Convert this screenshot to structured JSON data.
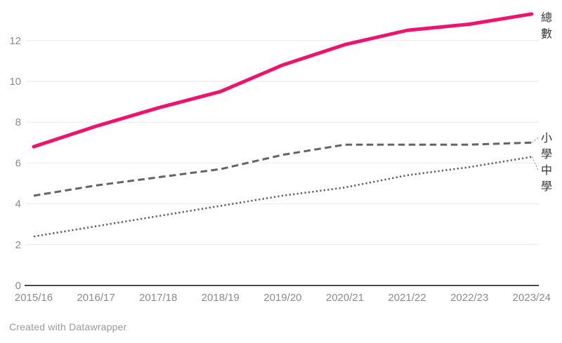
{
  "chart_data": {
    "type": "line",
    "title": "",
    "xlabel": "",
    "ylabel": "",
    "categories": [
      "2015/16",
      "2016/17",
      "2017/18",
      "2018/19",
      "2019/20",
      "2020/21",
      "2021/22",
      "2022/23",
      "2023/24"
    ],
    "series": [
      {
        "name": "總數",
        "values": [
          6.8,
          7.8,
          8.7,
          9.5,
          10.8,
          11.8,
          12.5,
          12.8,
          13.3
        ],
        "color": "#ed146f",
        "style": "solid",
        "stroke_width": 5,
        "label_offset": 5,
        "leader_line": false
      },
      {
        "name": "小學",
        "values": [
          4.4,
          4.9,
          5.3,
          5.7,
          6.4,
          6.9,
          6.9,
          6.9,
          7.0
        ],
        "color": "#646464",
        "style": "dashed",
        "stroke_width": 3,
        "label_offset": -7,
        "leader_line": true
      },
      {
        "name": "中學",
        "values": [
          2.4,
          2.9,
          3.4,
          3.9,
          4.4,
          4.8,
          5.4,
          5.8,
          6.3
        ],
        "color": "#646464",
        "style": "dotted",
        "stroke_width": 2.6,
        "label_offset": 19,
        "leader_line": true
      }
    ],
    "yticks": [
      0,
      2,
      4,
      6,
      8,
      10,
      12
    ],
    "ylim": [
      0,
      13.5
    ],
    "grid": true,
    "legend_position": "direct-labels-right",
    "colors": {
      "gridline": "#e9e9e9",
      "baseline": "#4a4a4a",
      "tick_label": "#8c8c8c",
      "direct_label": "#333333",
      "leader": "#8a8a8a"
    }
  },
  "footer": {
    "attribution": "Created with Datawrapper"
  }
}
